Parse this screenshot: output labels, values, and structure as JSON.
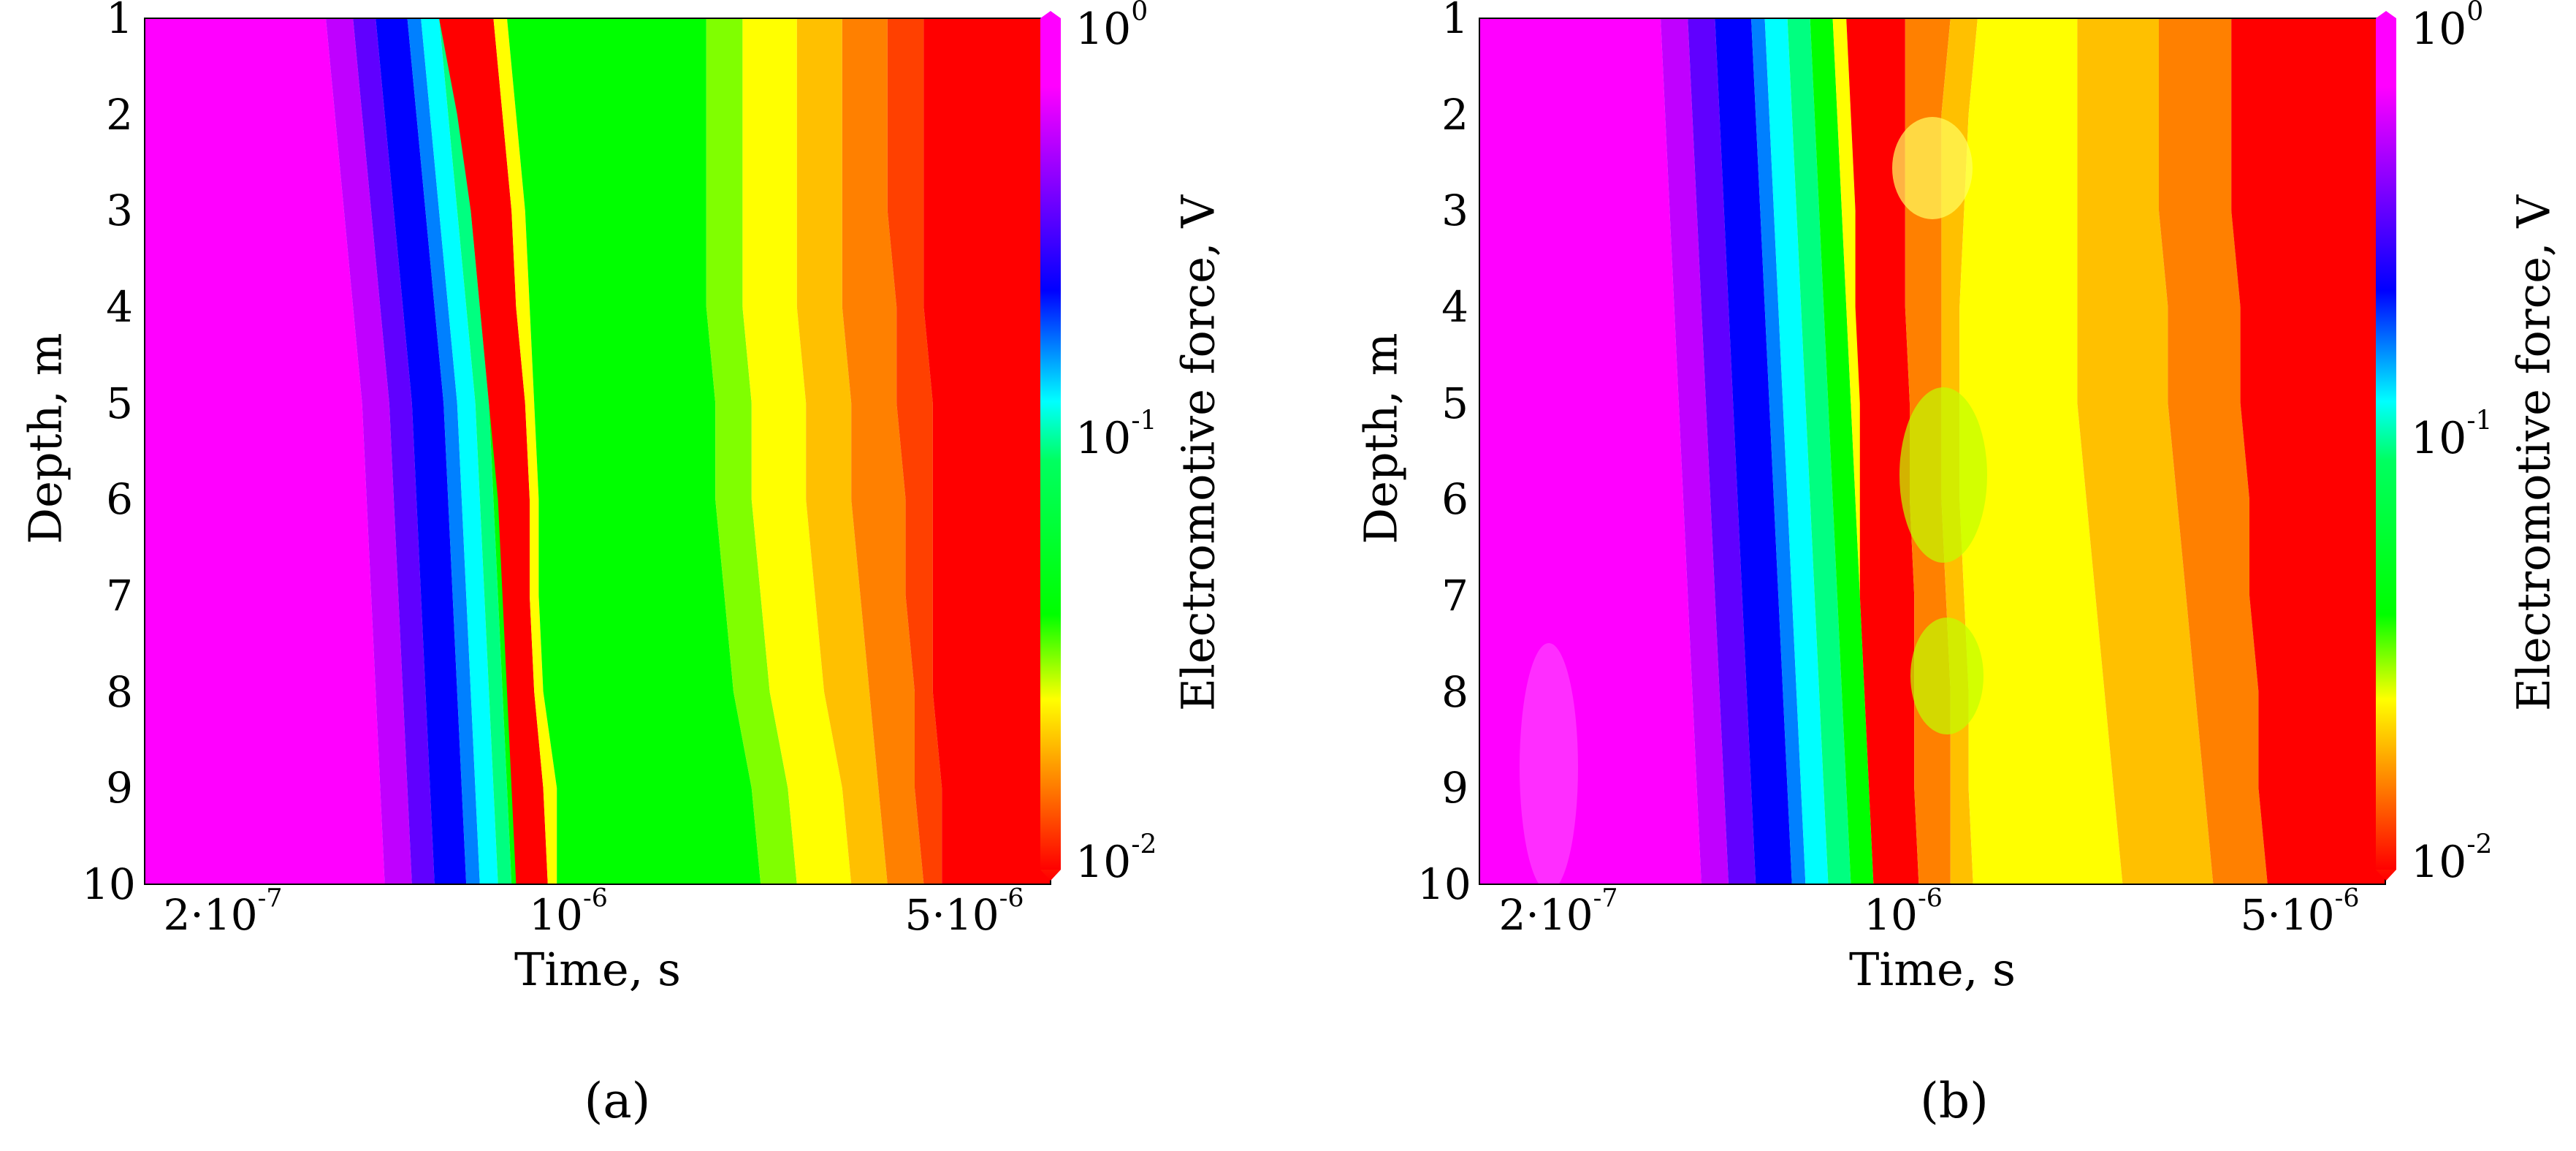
{
  "chart_data": [
    {
      "type": "heatmap",
      "panel": "a",
      "caption": "(a)",
      "xlabel": "Time, s",
      "ylabel": "Depth, m",
      "colorbar_label": "Electromotive force, V",
      "x_scale": "log",
      "xlim": [
        1.5e-07,
        6.5e-06
      ],
      "ylim": [
        1,
        10
      ],
      "y_inverted": true,
      "x_ticks": [
        {
          "value": 2e-07,
          "label": "2·10"
        },
        {
          "value": 1e-06,
          "label": "10"
        },
        {
          "value": 5e-06,
          "label": "5·10"
        }
      ],
      "x_tick_exponents": [
        "-7",
        "-6",
        "-6"
      ],
      "y_ticks": [
        "1",
        "2",
        "3",
        "4",
        "5",
        "6",
        "7",
        "8",
        "9",
        "10"
      ],
      "colorbar_ticks": [
        {
          "base": "10",
          "exp": "0"
        },
        {
          "base": "10",
          "exp": "-1"
        },
        {
          "base": "10",
          "exp": "-2"
        }
      ],
      "colorbar_scale": "log",
      "colorbar_range": [
        0.01,
        1
      ],
      "colormap": [
        "#ff0000",
        "#ff8000",
        "#ffff00",
        "#00ff00",
        "#00ffff",
        "#0000ff",
        "#8000ff",
        "#ff00ff"
      ],
      "depth_bands_time_s": {
        "description": "approximate time (s) where color transitions occur at each depth 1..10",
        "magenta_to_blue": [
          3.9e-07,
          4e-07,
          4.1e-07,
          4.2e-07,
          4.3e-07,
          4.4e-07,
          4.45e-07,
          4.5e-07,
          4.55e-07,
          4.6e-07
        ],
        "red_ridge": [
          6.5e-07,
          6.9e-07,
          7.2e-07,
          7.4e-07,
          7.6e-07,
          7.8e-07,
          7.9e-07,
          8e-07,
          8.3e-07,
          8.4e-07
        ],
        "green_to_yellow": [
          1.9e-06,
          1.9e-06,
          1.9e-06,
          1.8e-06,
          1.85e-06,
          1.9e-06,
          1.95e-06,
          2e-06,
          2.1e-06,
          2.2e-06
        ],
        "red_start": [
          3.9e-06,
          4e-06,
          4e-06,
          4e-06,
          4e-06,
          4.1e-06,
          4.1e-06,
          4.1e-06,
          4.2e-06,
          4.2e-06
        ]
      }
    },
    {
      "type": "heatmap",
      "panel": "b",
      "caption": "(b)",
      "xlabel": "Time, s",
      "ylabel": "Depth, m",
      "colorbar_label": "Electromotive force, V",
      "x_scale": "log",
      "xlim": [
        1.5e-07,
        6.5e-06
      ],
      "ylim": [
        1,
        10
      ],
      "y_inverted": true,
      "x_ticks": [
        {
          "value": 2e-07,
          "label": "2·10"
        },
        {
          "value": 1e-06,
          "label": "10"
        },
        {
          "value": 5e-06,
          "label": "5·10"
        }
      ],
      "x_tick_exponents": [
        "-7",
        "-6",
        "-6"
      ],
      "y_ticks": [
        "1",
        "2",
        "3",
        "4",
        "5",
        "6",
        "7",
        "8",
        "9",
        "10"
      ],
      "colorbar_ticks": [
        {
          "base": "10",
          "exp": "0"
        },
        {
          "base": "10",
          "exp": "-1"
        },
        {
          "base": "10",
          "exp": "-2"
        }
      ],
      "colorbar_scale": "log",
      "colorbar_range": [
        0.01,
        1
      ],
      "colormap": [
        "#ff0000",
        "#ff8000",
        "#ffff00",
        "#00ff00",
        "#00ffff",
        "#0000ff",
        "#8000ff",
        "#ff00ff"
      ]
    }
  ]
}
